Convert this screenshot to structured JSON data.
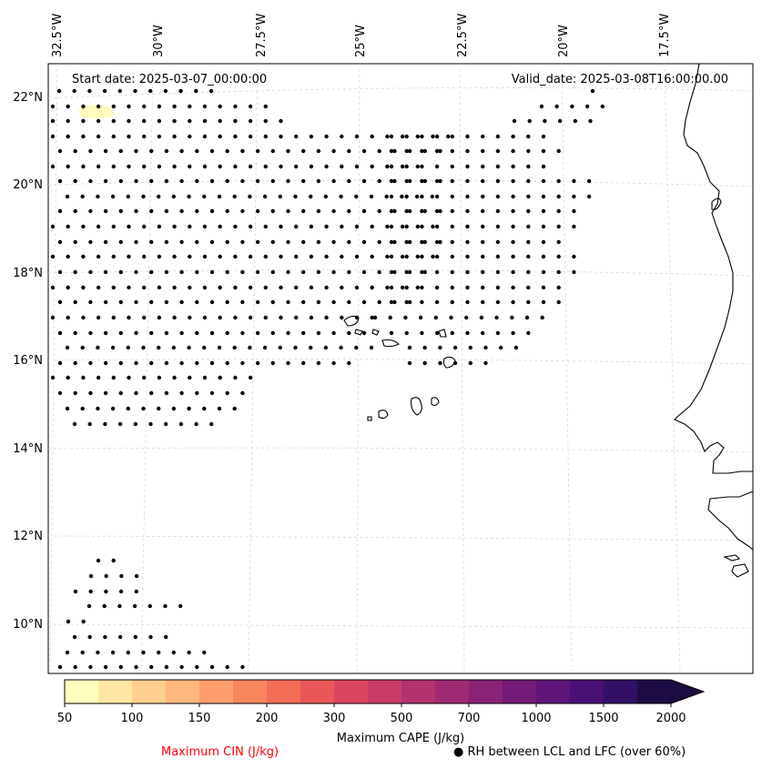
{
  "map": {
    "start_label": "Start date: 2025-03-07_00:00:00",
    "valid_label": "Valid_date: 2025-03-08T16:00:00.00",
    "lon_labels": [
      "32.5°W",
      "30°W",
      "27.5°W",
      "25°W",
      "22.5°W",
      "20°W",
      "17.5°W"
    ],
    "lat_labels": [
      "22°N",
      "20°N",
      "18°N",
      "16°N",
      "14°N",
      "12°N",
      "10°N"
    ]
  },
  "colorbar": {
    "title": "Maximum CAPE (J/kg)",
    "ticks": [
      "50",
      "100",
      "150",
      "200",
      "300",
      "500",
      "700",
      "1000",
      "1500",
      "2000"
    ],
    "colors": [
      "#fefdbe",
      "#fee7a3",
      "#fecf8e",
      "#feb77c",
      "#fd9e6c",
      "#f9855f",
      "#f46d57",
      "#ea5758",
      "#dc4560",
      "#c93b67",
      "#b4326e",
      "#9f2a73",
      "#8a2276",
      "#741a78",
      "#5f1479",
      "#491076",
      "#321066",
      "#1e0d45"
    ],
    "extend_color": "#1b0c41"
  },
  "legend": {
    "cin_label": "Maximum CIN (J/kg)",
    "cin_color": "#ff0000",
    "rh_marker": "●",
    "rh_label": "RH between LCL and LFC (over 60%)"
  },
  "colors": {
    "dot": "#000000",
    "coast": "#000000",
    "grid": "#d8d8d8",
    "cape_patch": "#fefdbe"
  }
}
